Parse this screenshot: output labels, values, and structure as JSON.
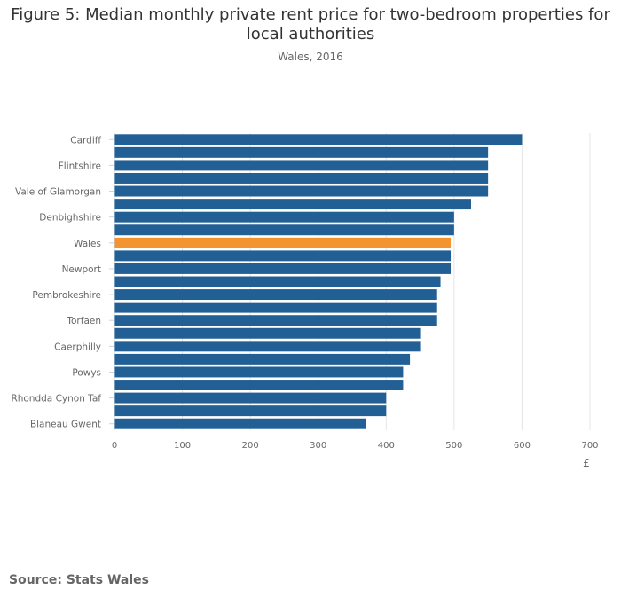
{
  "chart_data": {
    "type": "bar",
    "orientation": "horizontal",
    "title": "Figure 5: Median monthly private rent price for two-bedroom properties for local authorities",
    "subtitle": "Wales, 2016",
    "xlabel": "£",
    "ylabel": "",
    "xlim": [
      0,
      700
    ],
    "xticks": [
      0,
      100,
      200,
      300,
      400,
      500,
      600,
      700
    ],
    "grid": true,
    "categories": [
      "Cardiff",
      "",
      "Flintshire",
      "",
      "Vale of Glamorgan",
      "",
      "Denbighshire",
      "",
      "Wales",
      "",
      "Newport",
      "",
      "Pembrokeshire",
      "",
      "Torfaen",
      "",
      "Caerphilly",
      "",
      "Powys",
      "",
      "Rhondda Cynon Taf",
      "",
      "Blaneau Gwent"
    ],
    "values": [
      600,
      550,
      550,
      550,
      550,
      525,
      500,
      500,
      495,
      495,
      495,
      480,
      475,
      475,
      475,
      450,
      450,
      435,
      425,
      425,
      400,
      400,
      370
    ],
    "highlight_index": 8,
    "colors": {
      "bar": "#215f94",
      "highlight": "#f39431",
      "grid": "#e5e5e5",
      "axis": "#c8d4e3"
    }
  },
  "source": "Source: Stats Wales"
}
